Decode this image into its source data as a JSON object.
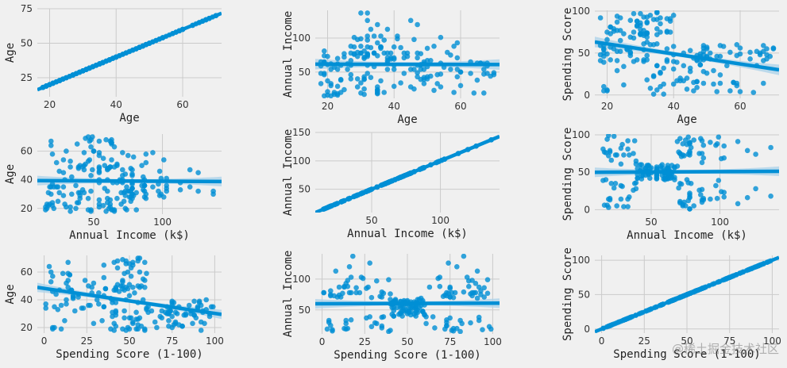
{
  "watermark": "@稀土掘金技术社区",
  "style": {
    "background": "#f0f0f0",
    "point_color": "#008fd5",
    "line_color": "#008fd5",
    "band_color": "#a9d2ea",
    "grid_color": "#cbcbcb"
  },
  "customers": {
    "age": [
      19,
      21,
      20,
      23,
      31,
      22,
      35,
      23,
      64,
      30,
      67,
      35,
      58,
      24,
      37,
      22,
      35,
      20,
      52,
      35,
      35,
      25,
      46,
      31,
      54,
      29,
      45,
      35,
      40,
      23,
      60,
      21,
      53,
      18,
      49,
      21,
      42,
      30,
      36,
      20,
      65,
      24,
      48,
      31,
      49,
      24,
      50,
      27,
      29,
      31,
      49,
      33,
      31,
      59,
      50,
      47,
      51,
      69,
      27,
      53,
      70,
      19,
      67,
      54,
      63,
      18,
      43,
      68,
      19,
      32,
      70,
      47,
      60,
      60,
      59,
      26,
      45,
      40,
      23,
      49,
      57,
      38,
      67,
      46,
      21,
      48,
      55,
      22,
      34,
      50,
      68,
      18,
      48,
      40,
      32,
      24,
      47,
      27,
      48,
      20,
      23,
      49,
      67,
      26,
      49,
      21,
      66,
      54,
      68,
      66,
      65,
      19,
      38,
      19,
      18,
      19,
      63,
      49,
      51,
      50,
      27,
      38,
      40,
      39,
      23,
      31,
      43,
      40,
      59,
      38,
      47,
      39,
      25,
      31,
      20,
      29,
      44,
      32,
      19,
      35,
      57,
      32,
      28,
      32,
      25,
      28,
      48,
      32,
      34,
      34,
      43,
      39,
      44,
      38,
      47,
      27,
      37,
      30,
      34,
      30,
      56,
      29,
      19,
      31,
      50,
      36,
      42,
      33,
      36,
      32,
      40,
      28,
      36,
      36,
      52,
      30,
      58,
      27,
      59,
      35,
      37,
      32,
      46,
      29,
      41,
      30,
      54,
      28,
      41,
      36,
      34,
      32,
      33,
      38,
      47,
      35,
      45,
      32,
      32,
      30
    ],
    "income": [
      15,
      15,
      16,
      16,
      17,
      17,
      18,
      18,
      19,
      19,
      19,
      19,
      20,
      20,
      20,
      20,
      21,
      21,
      23,
      23,
      24,
      24,
      25,
      25,
      28,
      28,
      28,
      28,
      29,
      29,
      30,
      30,
      33,
      33,
      33,
      33,
      34,
      34,
      37,
      37,
      38,
      38,
      39,
      39,
      39,
      39,
      40,
      40,
      40,
      40,
      42,
      42,
      43,
      43,
      43,
      43,
      44,
      44,
      46,
      46,
      46,
      46,
      47,
      47,
      48,
      48,
      48,
      48,
      48,
      48,
      49,
      49,
      50,
      50,
      54,
      54,
      54,
      54,
      54,
      54,
      54,
      54,
      54,
      54,
      54,
      54,
      57,
      57,
      58,
      58,
      59,
      59,
      60,
      60,
      60,
      60,
      60,
      60,
      61,
      61,
      62,
      62,
      62,
      62,
      62,
      62,
      63,
      63,
      63,
      63,
      63,
      63,
      64,
      64,
      65,
      65,
      65,
      65,
      67,
      67,
      67,
      67,
      69,
      69,
      70,
      70,
      71,
      71,
      71,
      71,
      71,
      71,
      72,
      72,
      73,
      73,
      73,
      73,
      74,
      74,
      75,
      75,
      76,
      76,
      77,
      77,
      77,
      77,
      78,
      78,
      78,
      78,
      78,
      78,
      78,
      78,
      78,
      78,
      78,
      78,
      79,
      79,
      81,
      81,
      85,
      85,
      86,
      86,
      87,
      87,
      87,
      87,
      87,
      87,
      88,
      88,
      88,
      88,
      93,
      93,
      97,
      97,
      98,
      98,
      99,
      99,
      101,
      101,
      103,
      103,
      103,
      103,
      113,
      113,
      120,
      120,
      126,
      126,
      137,
      137
    ],
    "score": [
      39,
      81,
      6,
      77,
      40,
      76,
      6,
      94,
      3,
      72,
      14,
      99,
      15,
      77,
      13,
      79,
      35,
      66,
      29,
      98,
      35,
      73,
      5,
      73,
      14,
      82,
      32,
      61,
      31,
      87,
      4,
      73,
      4,
      92,
      14,
      81,
      17,
      73,
      26,
      75,
      35,
      92,
      36,
      61,
      28,
      65,
      55,
      47,
      42,
      42,
      52,
      60,
      54,
      60,
      45,
      41,
      50,
      46,
      51,
      46,
      56,
      55,
      52,
      59,
      51,
      59,
      50,
      48,
      59,
      47,
      55,
      42,
      49,
      56,
      47,
      54,
      53,
      48,
      52,
      42,
      51,
      55,
      41,
      44,
      57,
      46,
      58,
      55,
      60,
      46,
      55,
      41,
      49,
      40,
      42,
      52,
      47,
      50,
      42,
      49,
      41,
      48,
      59,
      55,
      56,
      42,
      50,
      46,
      43,
      48,
      52,
      54,
      42,
      46,
      48,
      50,
      43,
      59,
      43,
      57,
      56,
      40,
      58,
      91,
      29,
      77,
      35,
      95,
      11,
      75,
      9,
      75,
      34,
      71,
      5,
      88,
      7,
      73,
      10,
      72,
      5,
      93,
      40,
      87,
      12,
      97,
      36,
      74,
      22,
      90,
      17,
      88,
      20,
      76,
      16,
      89,
      1,
      78,
      1,
      73,
      35,
      83,
      5,
      93,
      26,
      75,
      20,
      95,
      27,
      63,
      13,
      75,
      10,
      92,
      13,
      86,
      15,
      69,
      14,
      90,
      32,
      86,
      15,
      88,
      39,
      97,
      24,
      68,
      17,
      85,
      23,
      69,
      8,
      91,
      16,
      79,
      28,
      74,
      18,
      83
    ]
  },
  "chart_data": [
    {
      "type": "scatter",
      "x_var": "age",
      "y_var": "age",
      "xlabel": "Age",
      "ylabel": "Age",
      "xlim": [
        16.3,
        71.7
      ],
      "ylim": [
        11.2,
        75.0
      ],
      "xticks": [
        20,
        40,
        60
      ],
      "yticks": [
        25,
        50,
        75
      ],
      "fit": {
        "intercept": 0,
        "slope": 1
      }
    },
    {
      "type": "scatter",
      "x_var": "age",
      "y_var": "income",
      "xlabel": "Age",
      "ylabel": "Annual Income",
      "xlim": [
        16.3,
        71.7
      ],
      "ylim": [
        11.2,
        141.0
      ],
      "xticks": [
        20,
        40,
        60
      ],
      "yticks": [
        50,
        100
      ],
      "fit": {
        "intercept": 61.8,
        "slope": -0.01
      }
    },
    {
      "type": "scatter",
      "x_var": "age",
      "y_var": "score",
      "xlabel": "Age",
      "ylabel": "Spending Score",
      "xlim": [
        16.3,
        71.7
      ],
      "ylim": [
        -4.0,
        101.0
      ],
      "xticks": [
        20,
        40,
        60
      ],
      "yticks": [
        0,
        50,
        100
      ],
      "fit": {
        "intercept": 73.0,
        "slope": -0.6
      }
    },
    {
      "type": "scatter",
      "x_var": "income",
      "y_var": "age",
      "xlabel": "Annual Income (k$)",
      "ylabel": "Age",
      "xlim": [
        9.0,
        143.0
      ],
      "ylim": [
        16.0,
        72.0
      ],
      "xticks": [
        50,
        100
      ],
      "yticks": [
        20,
        40,
        60
      ],
      "fit": {
        "intercept": 39.5,
        "slope": -0.005
      }
    },
    {
      "type": "scatter",
      "x_var": "income",
      "y_var": "income",
      "xlabel": "Annual Income (k$)",
      "ylabel": "Annual Income",
      "xlim": [
        9.0,
        143.0
      ],
      "ylim": [
        9.0,
        150.0
      ],
      "xticks": [
        50,
        100
      ],
      "yticks": [
        50,
        100,
        150
      ],
      "fit": {
        "intercept": 0,
        "slope": 1
      }
    },
    {
      "type": "scatter",
      "x_var": "income",
      "y_var": "score",
      "xlabel": "Annual Income (k$)",
      "ylabel": "Spending Score",
      "xlim": [
        9.0,
        143.0
      ],
      "ylim": [
        -6.0,
        101.0
      ],
      "xticks": [
        50,
        100
      ],
      "yticks": [
        0,
        50,
        100
      ],
      "fit": {
        "intercept": 49.8,
        "slope": 0.01
      }
    },
    {
      "type": "scatter",
      "x_var": "score",
      "y_var": "age",
      "xlabel": "Spending Score (1-100)",
      "ylabel": "Age",
      "xlim": [
        -4.0,
        104.0
      ],
      "ylim": [
        16.0,
        72.0
      ],
      "xticks": [
        0,
        25,
        50,
        75,
        100
      ],
      "yticks": [
        20,
        40,
        60
      ],
      "fit": {
        "intercept": 48.2,
        "slope": -0.18
      }
    },
    {
      "type": "scatter",
      "x_var": "score",
      "y_var": "income",
      "xlabel": "Spending Score (1-100)",
      "ylabel": "Annual Income",
      "xlim": [
        -4.0,
        104.0
      ],
      "ylim": [
        11.2,
        141.0
      ],
      "xticks": [
        0,
        25,
        50,
        75,
        100
      ],
      "yticks": [
        50,
        100
      ],
      "fit": {
        "intercept": 60.0,
        "slope": 0.01
      }
    },
    {
      "type": "scatter",
      "x_var": "score",
      "y_var": "score",
      "xlabel": "Spending Score (1-100)",
      "ylabel": "Spending Score",
      "xlim": [
        -4.0,
        104.0
      ],
      "ylim": [
        -6.0,
        107.0
      ],
      "xticks": [
        0,
        25,
        50,
        75,
        100
      ],
      "yticks": [
        0,
        50,
        100
      ],
      "fit": {
        "intercept": 0,
        "slope": 1
      }
    }
  ]
}
